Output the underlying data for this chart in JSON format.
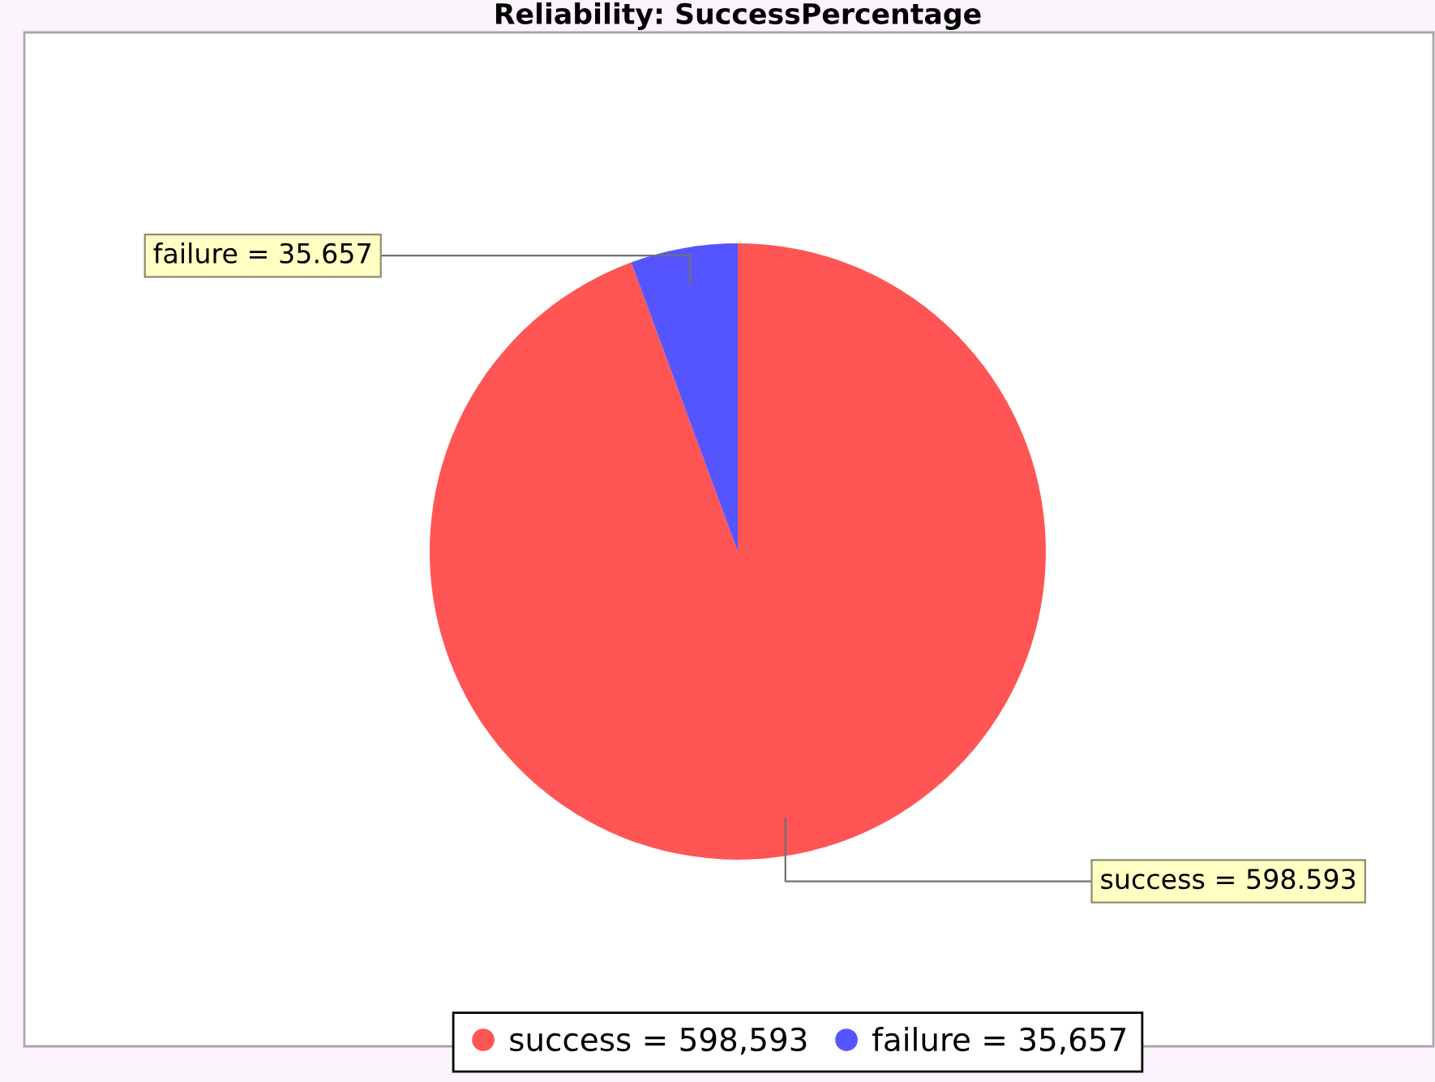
{
  "chart_data": {
    "type": "pie",
    "title": "Reliability: SuccessPercentage",
    "categories": [
      "success = 598,593",
      "failure = 35,657"
    ],
    "values": [
      598.593,
      35.657
    ],
    "colors": [
      "#ff5555",
      "#5555ff"
    ],
    "value_labels": [
      "success = 598.593",
      "failure = 35.657"
    ],
    "legend": "bottom"
  }
}
